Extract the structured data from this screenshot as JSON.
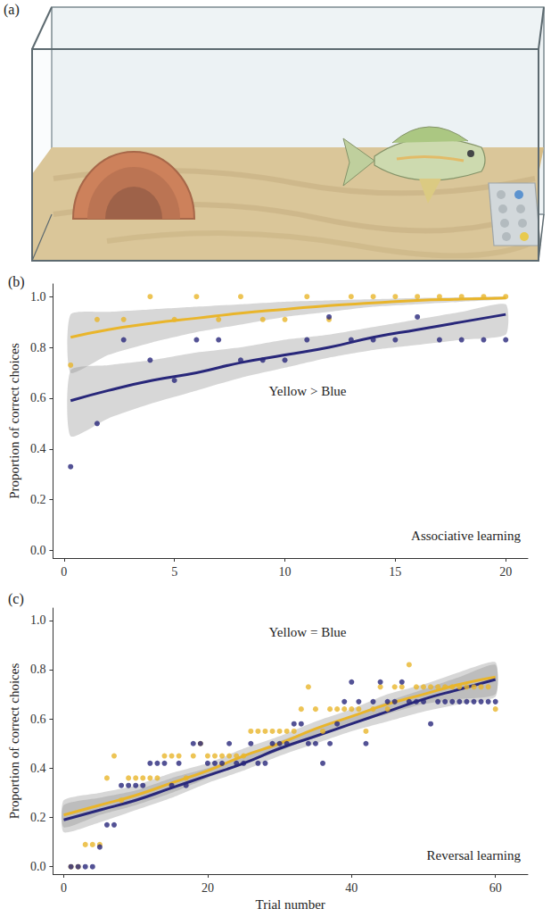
{
  "image": {
    "label": "(a)"
  },
  "chart_data": [
    {
      "type": "scatter",
      "title": "(b)",
      "y_label": "Proportion of correct choices",
      "annotations": [
        "Yellow > Blue",
        "Associative learning"
      ],
      "xlim": [
        -0.5,
        21
      ],
      "xticks": [
        0,
        5,
        10,
        15,
        20
      ],
      "ylim": [
        -0.03,
        1.05
      ],
      "yticks": [
        {
          "value": 0,
          "label": "0.0"
        },
        {
          "value": 0.2,
          "label": "0.2"
        },
        {
          "value": 0.4,
          "label": "0.4"
        },
        {
          "value": 0.6,
          "label": "0.6"
        },
        {
          "value": 0.8,
          "label": "0.8"
        },
        {
          "value": 1,
          "label": "1.0"
        }
      ],
      "grid": false,
      "series": [
        {
          "type": "scatter",
          "color": "#e9b52b",
          "marker": "circle",
          "x": [
            0.3,
            1.5,
            2.7,
            3.9,
            5,
            6,
            7,
            8,
            9,
            10,
            11,
            12,
            13,
            14,
            15,
            16,
            17,
            18,
            19,
            20
          ],
          "values": [
            0.73,
            0.91,
            0.91,
            1.0,
            0.91,
            1.0,
            0.91,
            1.0,
            0.91,
            0.91,
            1.0,
            0.91,
            1.0,
            1.0,
            1.0,
            1.0,
            1.0,
            1.0,
            1.0,
            1.0
          ]
        },
        {
          "type": "scatter",
          "color": "#28277a",
          "marker": "circle",
          "x": [
            0.3,
            1.5,
            2.7,
            3.9,
            5,
            6,
            7,
            8,
            9,
            10,
            11,
            12,
            13,
            14,
            15,
            16,
            17,
            18,
            19,
            20
          ],
          "values": [
            0.33,
            0.5,
            0.83,
            0.75,
            0.67,
            0.83,
            0.83,
            0.75,
            0.75,
            0.75,
            0.83,
            0.92,
            0.83,
            0.83,
            0.83,
            0.92,
            0.83,
            0.83,
            0.83,
            0.83
          ]
        },
        {
          "type": "line",
          "color": "#e9b52b",
          "line_style": "solid",
          "x": [
            0.3,
            2,
            4,
            6,
            8,
            10,
            12,
            14,
            16,
            18,
            20
          ],
          "values": [
            0.84,
            0.87,
            0.895,
            0.915,
            0.935,
            0.95,
            0.965,
            0.975,
            0.985,
            0.99,
            0.995
          ],
          "ci_lower": [
            0.7,
            0.77,
            0.82,
            0.86,
            0.89,
            0.92,
            0.94,
            0.96,
            0.97,
            0.98,
            0.99
          ],
          "ci_upper": [
            0.93,
            0.94,
            0.95,
            0.96,
            0.97,
            0.98,
            0.985,
            0.99,
            0.995,
            0.997,
            1.0
          ]
        },
        {
          "type": "line",
          "color": "#28277a",
          "line_style": "solid",
          "x": [
            0.3,
            2,
            4,
            6,
            8,
            10,
            12,
            14,
            16,
            18,
            20
          ],
          "values": [
            0.59,
            0.63,
            0.67,
            0.7,
            0.74,
            0.77,
            0.8,
            0.84,
            0.87,
            0.9,
            0.93
          ],
          "ci_lower": [
            0.45,
            0.52,
            0.58,
            0.63,
            0.68,
            0.72,
            0.76,
            0.79,
            0.81,
            0.83,
            0.85
          ],
          "ci_upper": [
            0.71,
            0.73,
            0.75,
            0.78,
            0.8,
            0.83,
            0.85,
            0.88,
            0.91,
            0.94,
            0.97
          ]
        }
      ]
    },
    {
      "type": "scatter",
      "title": "(c)",
      "y_label": "Proportion of correct choices",
      "x_label": "Trial number",
      "annotations": [
        "Yellow = Blue",
        "Reversal learning"
      ],
      "xlim": [
        -1.5,
        64.5
      ],
      "xticks": [
        0,
        20,
        40,
        60
      ],
      "ylim": [
        -0.03,
        1.05
      ],
      "yticks": [
        {
          "value": 0,
          "label": "0.0"
        },
        {
          "value": 0.2,
          "label": "0.2"
        },
        {
          "value": 0.4,
          "label": "0.4"
        },
        {
          "value": 0.6,
          "label": "0.6"
        },
        {
          "value": 0.8,
          "label": "0.8"
        },
        {
          "value": 1,
          "label": "1.0"
        }
      ],
      "grid": false,
      "series": [
        {
          "type": "scatter",
          "color": "#e9b52b",
          "marker": "circle",
          "x": [
            1,
            2,
            3,
            4,
            5,
            6,
            7,
            8,
            9,
            10,
            11,
            12,
            13,
            14,
            15,
            16,
            17,
            18,
            19,
            20,
            21,
            22,
            23,
            24,
            25,
            26,
            27,
            28,
            29,
            30,
            31,
            32,
            33,
            34,
            35,
            36,
            37,
            38,
            39,
            40,
            41,
            42,
            43,
            44,
            45,
            46,
            47,
            48,
            49,
            50,
            51,
            52,
            53,
            54,
            55,
            56,
            57,
            58,
            59,
            60
          ],
          "values": [
            0,
            0,
            0.09,
            0.09,
            0.09,
            0.36,
            0.45,
            0.27,
            0.36,
            0.36,
            0.36,
            0.36,
            0.36,
            0.45,
            0.45,
            0.45,
            0.36,
            0.45,
            0.5,
            0.45,
            0.45,
            0.45,
            0.45,
            0.45,
            0.45,
            0.55,
            0.55,
            0.55,
            0.55,
            0.55,
            0.55,
            0.55,
            0.64,
            0.73,
            0.64,
            0.55,
            0.64,
            0.64,
            0.64,
            0.64,
            0.64,
            0.55,
            0.64,
            0.73,
            0.64,
            0.73,
            0.73,
            0.82,
            0.73,
            0.73,
            0.73,
            0.73,
            0.73,
            0.73,
            0.73,
            0.73,
            0.73,
            0.73,
            0.73,
            0.64
          ]
        },
        {
          "type": "scatter",
          "color": "#28277a",
          "marker": "circle",
          "x": [
            1,
            2,
            3,
            4,
            5,
            6,
            7,
            8,
            9,
            10,
            11,
            12,
            13,
            14,
            15,
            16,
            17,
            18,
            19,
            20,
            21,
            22,
            23,
            24,
            25,
            26,
            27,
            28,
            29,
            30,
            31,
            32,
            33,
            34,
            35,
            36,
            37,
            38,
            39,
            40,
            41,
            42,
            43,
            44,
            45,
            46,
            47,
            48,
            49,
            50,
            51,
            52,
            53,
            54,
            55,
            56,
            57,
            58,
            59,
            60
          ],
          "values": [
            0,
            0,
            0,
            0,
            0.08,
            0.17,
            0.17,
            0.33,
            0.33,
            0.33,
            0.33,
            0.42,
            0.42,
            0.42,
            0.33,
            0.42,
            0.33,
            0.5,
            0.5,
            0.42,
            0.42,
            0.42,
            0.5,
            0.42,
            0.42,
            0.5,
            0.42,
            0.42,
            0.5,
            0.5,
            0.5,
            0.58,
            0.58,
            0.5,
            0.5,
            0.42,
            0.5,
            0.58,
            0.67,
            0.75,
            0.67,
            0.5,
            0.67,
            0.75,
            0.67,
            0.67,
            0.75,
            0.67,
            0.67,
            0.67,
            0.58,
            0.67,
            0.67,
            0.67,
            0.67,
            0.67,
            0.67,
            0.67,
            0.67,
            0.67
          ]
        },
        {
          "type": "line",
          "color": "#e9b52b",
          "line_style": "solid",
          "x": [
            0,
            5,
            10,
            15,
            20,
            25,
            30,
            35,
            40,
            45,
            50,
            55,
            60
          ],
          "values": [
            0.21,
            0.25,
            0.29,
            0.34,
            0.39,
            0.45,
            0.5,
            0.56,
            0.61,
            0.66,
            0.7,
            0.74,
            0.77
          ],
          "ci_lower": [
            0.16,
            0.21,
            0.25,
            0.3,
            0.36,
            0.42,
            0.47,
            0.53,
            0.58,
            0.62,
            0.66,
            0.68,
            0.7
          ],
          "ci_upper": [
            0.27,
            0.3,
            0.33,
            0.38,
            0.42,
            0.48,
            0.53,
            0.59,
            0.64,
            0.7,
            0.74,
            0.79,
            0.83
          ]
        },
        {
          "type": "line",
          "color": "#28277a",
          "line_style": "solid",
          "x": [
            0,
            5,
            10,
            15,
            20,
            25,
            30,
            35,
            40,
            45,
            50,
            55,
            60
          ],
          "values": [
            0.19,
            0.23,
            0.27,
            0.32,
            0.37,
            0.42,
            0.48,
            0.53,
            0.58,
            0.63,
            0.68,
            0.72,
            0.76
          ],
          "ci_lower": [
            0.14,
            0.18,
            0.23,
            0.28,
            0.34,
            0.39,
            0.45,
            0.5,
            0.55,
            0.59,
            0.63,
            0.66,
            0.69
          ],
          "ci_upper": [
            0.25,
            0.28,
            0.31,
            0.36,
            0.4,
            0.45,
            0.51,
            0.56,
            0.61,
            0.67,
            0.72,
            0.77,
            0.82
          ]
        }
      ]
    }
  ]
}
